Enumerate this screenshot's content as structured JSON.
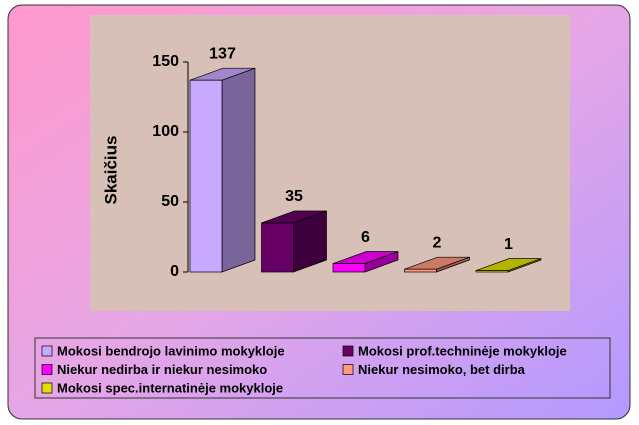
{
  "chart_data": {
    "type": "bar3d",
    "y_label": "Skaičius",
    "ylim": [
      0,
      150
    ],
    "yticks": [
      0,
      50,
      100,
      150
    ],
    "series": [
      {
        "name": "Mokosi bendrojo lavinimo mokykloje",
        "color": "#c9a8ff",
        "values": [
          137
        ]
      },
      {
        "name": "Mokosi prof.techninėje mokykloje",
        "color": "#660066",
        "values": [
          35
        ]
      },
      {
        "name": "Niekur nedirba ir niekur nesimoko",
        "color": "#ff00ff",
        "values": [
          6
        ]
      },
      {
        "name": "Niekur nesimoko, bet dirba",
        "color": "#ff9980",
        "values": [
          2
        ]
      },
      {
        "name": "Mokosi spec.internatinėje mokykloje",
        "color": "#e0e000",
        "values": [
          1
        ]
      }
    ],
    "legend": "bottom"
  }
}
